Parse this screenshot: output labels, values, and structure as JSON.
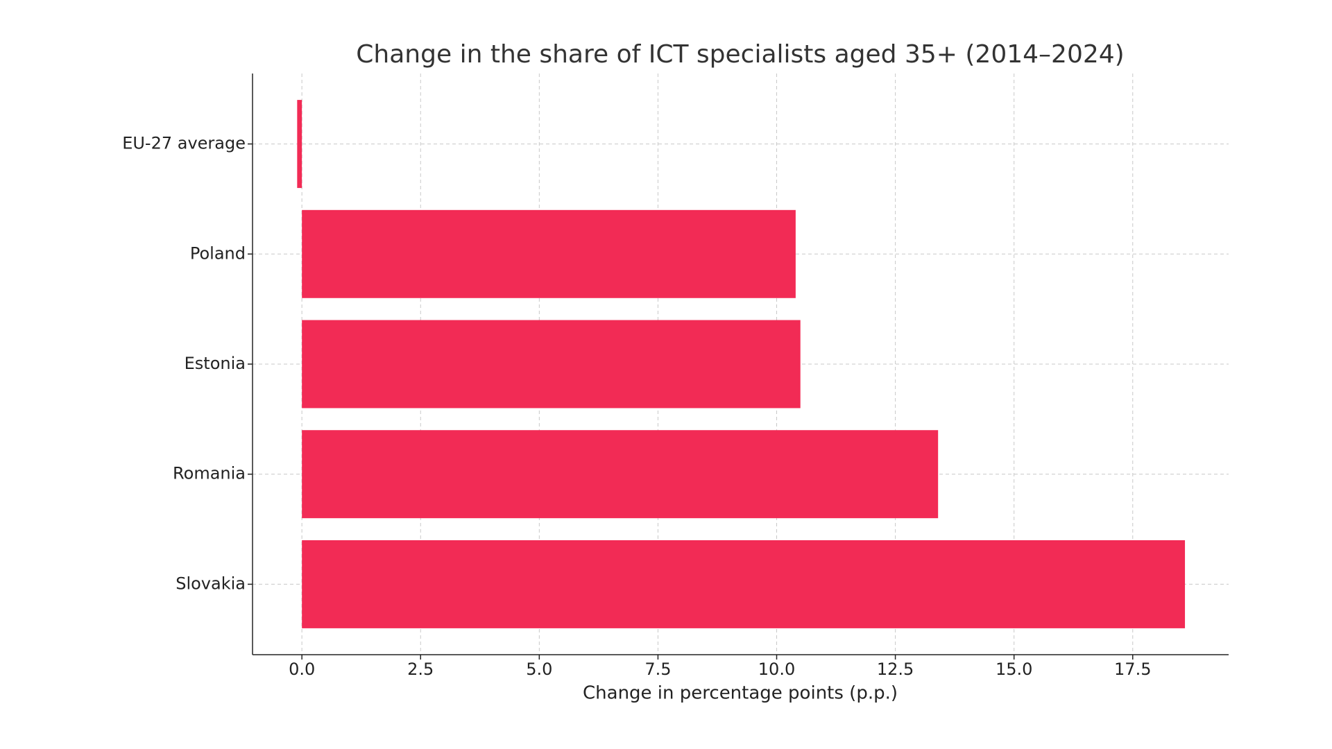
{
  "chart_data": {
    "type": "barh",
    "title": "Change in the share of ICT specialists aged 35+ (2014–2024)",
    "x_label": "Change in percentage points (p.p.)",
    "categories": [
      "EU-27 average",
      "Poland",
      "Estonia",
      "Romania",
      "Slovakia"
    ],
    "values": [
      -0.1,
      10.4,
      10.5,
      13.4,
      18.6
    ],
    "color": "#f22b55",
    "xlim": [
      -1.04,
      19.52
    ],
    "xticks": [
      {
        "value": 0,
        "label": "0.0"
      },
      2.5,
      {
        "value": 5,
        "label": "5.0"
      },
      7.5,
      {
        "value": 10,
        "label": "10.0"
      },
      12.5,
      {
        "value": 15,
        "label": "15.0"
      },
      17.5
    ],
    "grid": true
  }
}
